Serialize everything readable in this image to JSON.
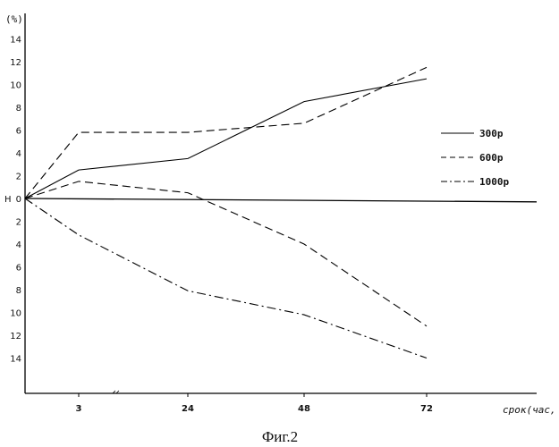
{
  "chart_data": {
    "type": "line",
    "caption": "Фиг.2",
    "ylabel": "(%)",
    "xlabel": "срок(час,",
    "x": [
      0,
      3,
      24,
      48,
      72
    ],
    "x_tick_labels": [
      "3",
      "24",
      "48",
      "72"
    ],
    "y_zero_labels": [
      "Н",
      "0"
    ],
    "y_tick_labels_top": [
      "14",
      "12",
      "10",
      "8",
      "6",
      "4",
      "2"
    ],
    "y_tick_labels_bottom": [
      "2",
      "4",
      "6",
      "8",
      "10",
      "12",
      "14"
    ],
    "ylim": [
      -14,
      14
    ],
    "legend_position": "right",
    "reference_line": {
      "y_start": 0,
      "y_end": -0.3
    },
    "series": [
      {
        "name": "300р",
        "style": "solid",
        "upper": [
          0,
          2.5,
          3.5,
          8.5,
          10.5
        ]
      },
      {
        "name": "600р",
        "style": "dashed",
        "upper": [
          0,
          5.8,
          5.8,
          6.6,
          11.5
        ],
        "lower": [
          0,
          1.5,
          0.5,
          -4.0,
          -11.2
        ]
      },
      {
        "name": "1000р",
        "style": "dashdot",
        "lower": [
          0,
          -3.2,
          -8.1,
          -10.2,
          -14.0
        ]
      }
    ]
  }
}
